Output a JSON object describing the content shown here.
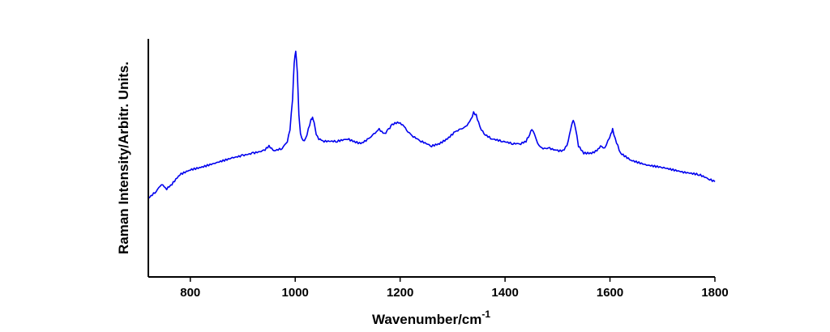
{
  "chart_data": {
    "type": "line",
    "title": "",
    "xlabel": "Wavenumber/cm",
    "xlabel_superscript": "-1",
    "ylabel": "Raman Intensity/Arbitr. Units.",
    "xlim": [
      720,
      1800
    ],
    "ylim": [
      0,
      1
    ],
    "x_ticks": [
      800,
      1000,
      1200,
      1400,
      1600,
      1800
    ],
    "x_tick_labels": [
      "800",
      "1000",
      "1200",
      "1400",
      "1600",
      "1800"
    ],
    "y_ticks_shown": false,
    "grid": false,
    "legend": "none",
    "line_color": "#0000ee",
    "series": [
      {
        "x": [
          720,
          735,
          745,
          755,
          765,
          780,
          800,
          820,
          850,
          880,
          900,
          920,
          940,
          950,
          955,
          960,
          975,
          985,
          990,
          995,
          998,
          1001,
          1004,
          1007,
          1010,
          1015,
          1020,
          1025,
          1030,
          1033,
          1036,
          1040,
          1045,
          1055,
          1080,
          1100,
          1110,
          1125,
          1140,
          1150,
          1160,
          1170,
          1178,
          1185,
          1195,
          1205,
          1215,
          1225,
          1240,
          1260,
          1275,
          1290,
          1305,
          1315,
          1325,
          1335,
          1340,
          1345,
          1352,
          1360,
          1375,
          1395,
          1415,
          1430,
          1440,
          1447,
          1451,
          1456,
          1462,
          1470,
          1485,
          1500,
          1510,
          1518,
          1523,
          1527,
          1530,
          1534,
          1540,
          1550,
          1565,
          1575,
          1582,
          1590,
          1596,
          1602,
          1605,
          1610,
          1620,
          1640,
          1670,
          1700,
          1740,
          1770,
          1790,
          1800
        ],
        "y": [
          0.33,
          0.36,
          0.39,
          0.37,
          0.39,
          0.43,
          0.45,
          0.46,
          0.48,
          0.5,
          0.51,
          0.52,
          0.53,
          0.55,
          0.54,
          0.53,
          0.54,
          0.57,
          0.62,
          0.75,
          0.9,
          0.95,
          0.86,
          0.68,
          0.6,
          0.57,
          0.58,
          0.62,
          0.66,
          0.67,
          0.65,
          0.6,
          0.58,
          0.57,
          0.57,
          0.58,
          0.57,
          0.56,
          0.58,
          0.6,
          0.62,
          0.6,
          0.62,
          0.64,
          0.65,
          0.64,
          0.61,
          0.59,
          0.57,
          0.55,
          0.56,
          0.58,
          0.61,
          0.62,
          0.63,
          0.66,
          0.69,
          0.68,
          0.63,
          0.6,
          0.58,
          0.57,
          0.56,
          0.56,
          0.57,
          0.6,
          0.62,
          0.6,
          0.56,
          0.54,
          0.54,
          0.53,
          0.53,
          0.55,
          0.6,
          0.64,
          0.66,
          0.63,
          0.55,
          0.52,
          0.52,
          0.53,
          0.55,
          0.54,
          0.57,
          0.6,
          0.62,
          0.58,
          0.52,
          0.49,
          0.47,
          0.46,
          0.44,
          0.43,
          0.41,
          0.4
        ]
      }
    ]
  }
}
